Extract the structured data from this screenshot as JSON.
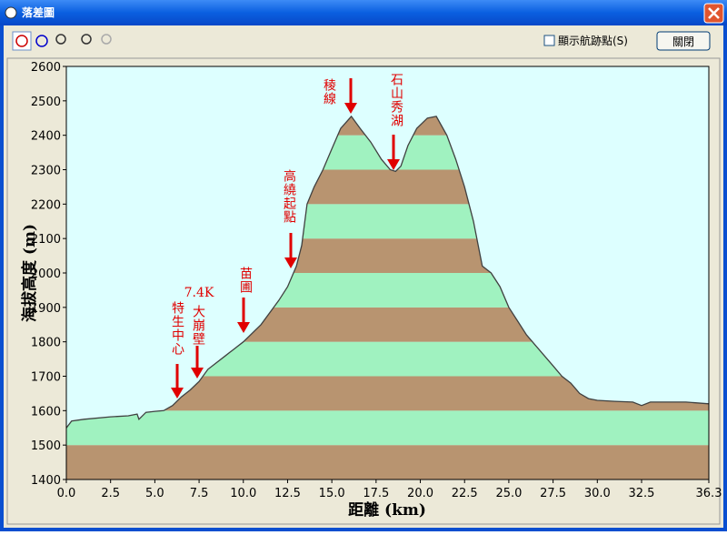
{
  "window": {
    "title": "落差圖",
    "show_points": "顯示航跡點(S)",
    "close_button": "關閉"
  },
  "chart_data": {
    "type": "area",
    "x_label": "距離 (km)",
    "y_label": "海拔高度 (m)",
    "x": [
      0,
      0.3,
      1.0,
      2.5,
      3.5,
      4.0,
      4.1,
      4.5,
      5.0,
      5.5,
      6.0,
      6.5,
      7.0,
      7.5,
      8.0,
      9.0,
      10.0,
      11.0,
      12.0,
      12.5,
      13.0,
      13.3,
      13.6,
      14.0,
      14.5,
      15.0,
      15.5,
      16.1,
      16.6,
      17.2,
      17.8,
      18.3,
      18.6,
      18.9,
      19.3,
      19.8,
      20.4,
      20.9,
      21.5,
      22.0,
      22.5,
      23.0,
      23.5,
      24.0,
      24.5,
      25.0,
      25.5,
      26.0,
      26.5,
      27.0,
      27.5,
      28.0,
      28.5,
      29.0,
      29.5,
      30.0,
      31.0,
      32.0,
      32.5,
      33.0,
      34.0,
      35.0,
      36.3
    ],
    "values": [
      1550,
      1570,
      1575,
      1582,
      1585,
      1590,
      1575,
      1595,
      1598,
      1600,
      1615,
      1640,
      1660,
      1685,
      1720,
      1760,
      1800,
      1850,
      1920,
      1960,
      2020,
      2080,
      2200,
      2250,
      2300,
      2360,
      2420,
      2455,
      2420,
      2380,
      2330,
      2300,
      2295,
      2310,
      2370,
      2420,
      2450,
      2455,
      2400,
      2330,
      2250,
      2150,
      2020,
      2000,
      1960,
      1900,
      1860,
      1820,
      1790,
      1760,
      1730,
      1700,
      1680,
      1650,
      1635,
      1630,
      1627,
      1625,
      1615,
      1625,
      1625,
      1625,
      1620
    ],
    "xlim": [
      0,
      36.3
    ],
    "ylim": [
      1400,
      2600
    ],
    "xticks": [
      {
        "value": 0,
        "label": "0.0"
      },
      2.5,
      {
        "value": 5,
        "label": "5.0"
      },
      7.5,
      {
        "value": 10,
        "label": "10.0"
      },
      12.5,
      {
        "value": 15,
        "label": "15.0"
      },
      17.5,
      {
        "value": 20,
        "label": "20.0"
      },
      22.5,
      {
        "value": 25,
        "label": "25.0"
      },
      27.5,
      {
        "value": 30,
        "label": "30.0"
      },
      32.5,
      36.3
    ],
    "yticks": [
      1400,
      1500,
      1600,
      1700,
      1800,
      1900,
      2000,
      2100,
      2200,
      2300,
      2400,
      2500,
      2600
    ],
    "band_colors": [
      "#b89470",
      "#a0f2c0"
    ],
    "background": "#ddffff",
    "line_color": "#404040",
    "annotation_color": "#e00000",
    "annotations": [
      {
        "text": "稜線"
      },
      {
        "text": "石山秀湖"
      },
      {
        "text": "高繞起點"
      },
      {
        "text": "苗圃"
      },
      {
        "text": "7.4K"
      },
      {
        "text": "大崩壁"
      },
      {
        "text": "特生中心"
      }
    ]
  }
}
